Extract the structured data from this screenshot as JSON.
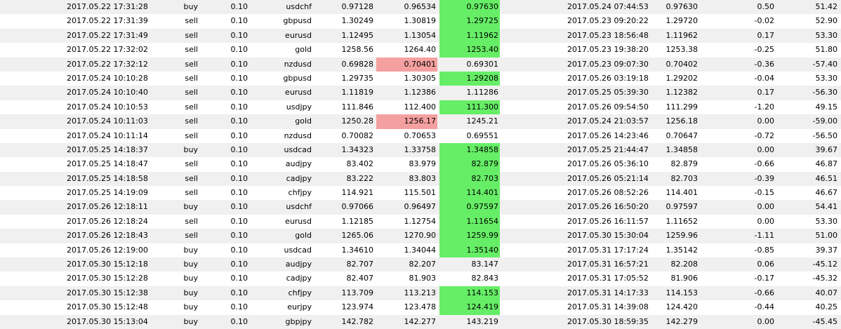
{
  "colors": {
    "row_even_bg": "#f0f0f0",
    "row_odd_bg": "#ffffff",
    "tp_hit": "#66ee66",
    "sl_hit": "#f5a0a0"
  },
  "rows": [
    {
      "open_time": "2017.05.22 17:31:28",
      "type": "buy",
      "size": "0.10",
      "symbol": "usdchf",
      "price": "0.97128",
      "sl": "0.96534",
      "tp": "0.97630",
      "close_time": "2017.05.24 07:44:53",
      "close_price": "0.97630",
      "commission": "0.50",
      "profit": "51.42",
      "sl_hit": false,
      "tp_hit": true
    },
    {
      "open_time": "2017.05.22 17:31:39",
      "type": "sell",
      "size": "0.10",
      "symbol": "gbpusd",
      "price": "1.30249",
      "sl": "1.30819",
      "tp": "1.29725",
      "close_time": "2017.05.23 09:20:22",
      "close_price": "1.29720",
      "commission": "-0.02",
      "profit": "52.90",
      "sl_hit": false,
      "tp_hit": true
    },
    {
      "open_time": "2017.05.22 17:31:49",
      "type": "sell",
      "size": "0.10",
      "symbol": "eurusd",
      "price": "1.12495",
      "sl": "1.13054",
      "tp": "1.11962",
      "close_time": "2017.05.23 18:56:48",
      "close_price": "1.11962",
      "commission": "0.17",
      "profit": "53.30",
      "sl_hit": false,
      "tp_hit": true
    },
    {
      "open_time": "2017.05.22 17:32:02",
      "type": "sell",
      "size": "0.10",
      "symbol": "gold",
      "price": "1258.56",
      "sl": "1264.40",
      "tp": "1253.40",
      "close_time": "2017.05.23 19:38:20",
      "close_price": "1253.38",
      "commission": "-0.25",
      "profit": "51.80",
      "sl_hit": false,
      "tp_hit": true
    },
    {
      "open_time": "2017.05.22 17:32:12",
      "type": "sell",
      "size": "0.10",
      "symbol": "nzdusd",
      "price": "0.69828",
      "sl": "0.70401",
      "tp": "0.69301",
      "close_time": "2017.05.23 09:07:30",
      "close_price": "0.70402",
      "commission": "-0.36",
      "profit": "-57.40",
      "sl_hit": true,
      "tp_hit": false
    },
    {
      "open_time": "2017.05.24 10:10:28",
      "type": "sell",
      "size": "0.10",
      "symbol": "gbpusd",
      "price": "1.29735",
      "sl": "1.30305",
      "tp": "1.29208",
      "close_time": "2017.05.26 03:19:18",
      "close_price": "1.29202",
      "commission": "-0.04",
      "profit": "53.30",
      "sl_hit": false,
      "tp_hit": true
    },
    {
      "open_time": "2017.05.24 10:10:40",
      "type": "sell",
      "size": "0.10",
      "symbol": "eurusd",
      "price": "1.11819",
      "sl": "1.12386",
      "tp": "1.11286",
      "close_time": "2017.05.25 05:39:30",
      "close_price": "1.12382",
      "commission": "0.17",
      "profit": "-56.30",
      "sl_hit": false,
      "tp_hit": false
    },
    {
      "open_time": "2017.05.24 10:10:53",
      "type": "sell",
      "size": "0.10",
      "symbol": "usdjpy",
      "price": "111.846",
      "sl": "112.400",
      "tp": "111.300",
      "close_time": "2017.05.26 09:54:50",
      "close_price": "111.299",
      "commission": "-1.20",
      "profit": "49.15",
      "sl_hit": false,
      "tp_hit": true
    },
    {
      "open_time": "2017.05.24 10:11:03",
      "type": "sell",
      "size": "0.10",
      "symbol": "gold",
      "price": "1250.28",
      "sl": "1256.17",
      "tp": "1245.21",
      "close_time": "2017.05.24 21:03:57",
      "close_price": "1256.18",
      "commission": "0.00",
      "profit": "-59.00",
      "sl_hit": true,
      "tp_hit": false
    },
    {
      "open_time": "2017.05.24 10:11:14",
      "type": "sell",
      "size": "0.10",
      "symbol": "nzdusd",
      "price": "0.70082",
      "sl": "0.70653",
      "tp": "0.69551",
      "close_time": "2017.05.26 14:23:46",
      "close_price": "0.70647",
      "commission": "-0.72",
      "profit": "-56.50",
      "sl_hit": false,
      "tp_hit": false
    },
    {
      "open_time": "2017.05.25 14:18:37",
      "type": "buy",
      "size": "0.10",
      "symbol": "usdcad",
      "price": "1.34323",
      "sl": "1.33758",
      "tp": "1.34858",
      "close_time": "2017.05.25 21:44:47",
      "close_price": "1.34858",
      "commission": "0.00",
      "profit": "39.67",
      "sl_hit": false,
      "tp_hit": true
    },
    {
      "open_time": "2017.05.25 14:18:47",
      "type": "sell",
      "size": "0.10",
      "symbol": "audjpy",
      "price": "83.402",
      "sl": "83.979",
      "tp": "82.879",
      "close_time": "2017.05.26 05:36:10",
      "close_price": "82.879",
      "commission": "-0.66",
      "profit": "46.87",
      "sl_hit": false,
      "tp_hit": true
    },
    {
      "open_time": "2017.05.25 14:18:58",
      "type": "sell",
      "size": "0.10",
      "symbol": "cadjpy",
      "price": "83.222",
      "sl": "83.803",
      "tp": "82.703",
      "close_time": "2017.05.26 05:21:14",
      "close_price": "82.703",
      "commission": "-0.39",
      "profit": "46.51",
      "sl_hit": false,
      "tp_hit": true
    },
    {
      "open_time": "2017.05.25 14:19:09",
      "type": "sell",
      "size": "0.10",
      "symbol": "chfjpy",
      "price": "114.921",
      "sl": "115.501",
      "tp": "114.401",
      "close_time": "2017.05.26 08:52:26",
      "close_price": "114.401",
      "commission": "-0.15",
      "profit": "46.67",
      "sl_hit": false,
      "tp_hit": true
    },
    {
      "open_time": "2017.05.26 12:18:11",
      "type": "buy",
      "size": "0.10",
      "symbol": "usdchf",
      "price": "0.97066",
      "sl": "0.96497",
      "tp": "0.97597",
      "close_time": "2017.05.26 16:50:20",
      "close_price": "0.97597",
      "commission": "0.00",
      "profit": "54.41",
      "sl_hit": false,
      "tp_hit": true
    },
    {
      "open_time": "2017.05.26 12:18:24",
      "type": "sell",
      "size": "0.10",
      "symbol": "eurusd",
      "price": "1.12185",
      "sl": "1.12754",
      "tp": "1.11654",
      "close_time": "2017.05.26 16:11:57",
      "close_price": "1.11652",
      "commission": "0.00",
      "profit": "53.30",
      "sl_hit": false,
      "tp_hit": true
    },
    {
      "open_time": "2017.05.26 12:18:43",
      "type": "sell",
      "size": "0.10",
      "symbol": "gold",
      "price": "1265.06",
      "sl": "1270.90",
      "tp": "1259.99",
      "close_time": "2017.05.30 15:30:04",
      "close_price": "1259.96",
      "commission": "-1.11",
      "profit": "51.00",
      "sl_hit": false,
      "tp_hit": true
    },
    {
      "open_time": "2017.05.26 12:19:00",
      "type": "buy",
      "size": "0.10",
      "symbol": "usdcad",
      "price": "1.34610",
      "sl": "1.34044",
      "tp": "1.35140",
      "close_time": "2017.05.31 17:17:24",
      "close_price": "1.35142",
      "commission": "-0.85",
      "profit": "39.37",
      "sl_hit": false,
      "tp_hit": true
    },
    {
      "open_time": "2017.05.30 15:12:18",
      "type": "buy",
      "size": "0.10",
      "symbol": "audjpy",
      "price": "82.707",
      "sl": "82.207",
      "tp": "83.147",
      "close_time": "2017.05.31 16:57:21",
      "close_price": "82.208",
      "commission": "0.06",
      "profit": "-45.12",
      "sl_hit": false,
      "tp_hit": false
    },
    {
      "open_time": "2017.05.30 15:12:28",
      "type": "buy",
      "size": "0.10",
      "symbol": "cadjpy",
      "price": "82.407",
      "sl": "81.903",
      "tp": "82.843",
      "close_time": "2017.05.31 17:05:52",
      "close_price": "81.906",
      "commission": "-0.17",
      "profit": "-45.32",
      "sl_hit": false,
      "tp_hit": false
    },
    {
      "open_time": "2017.05.30 15:12:38",
      "type": "buy",
      "size": "0.10",
      "symbol": "chfjpy",
      "price": "113.709",
      "sl": "113.213",
      "tp": "114.153",
      "close_time": "2017.05.31 14:17:33",
      "close_price": "114.153",
      "commission": "-0.66",
      "profit": "40.07",
      "sl_hit": false,
      "tp_hit": true
    },
    {
      "open_time": "2017.05.30 15:12:48",
      "type": "buy",
      "size": "0.10",
      "symbol": "eurjpy",
      "price": "123.974",
      "sl": "123.478",
      "tp": "124.419",
      "close_time": "2017.05.31 14:39:08",
      "close_price": "124.420",
      "commission": "-0.44",
      "profit": "40.25",
      "sl_hit": false,
      "tp_hit": true
    },
    {
      "open_time": "2017.05.30 15:13:04",
      "type": "buy",
      "size": "0.10",
      "symbol": "gbpjpy",
      "price": "142.782",
      "sl": "142.277",
      "tp": "143.219",
      "close_time": "2017.05.30 18:59:35",
      "close_price": "142.279",
      "commission": "0.00",
      "profit": "-45.45",
      "sl_hit": false,
      "tp_hit": false
    }
  ]
}
